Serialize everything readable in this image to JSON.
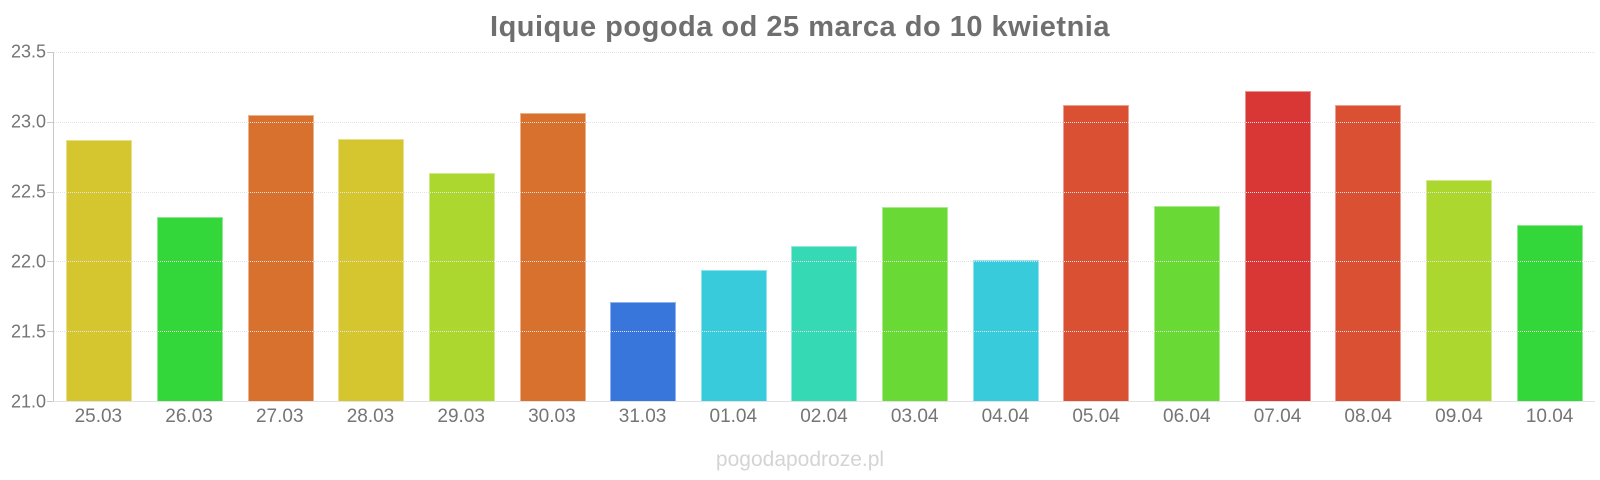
{
  "page": {
    "watermark": "pogodapodroze.pl",
    "background_color": "#ffffff",
    "title_color": "#6f6f6f",
    "axis_label_color": "#757575"
  },
  "chart_data": {
    "type": "bar",
    "title": "Iquique pogoda od 25 marca do 10 kwietnia",
    "xlabel": "",
    "ylabel": "",
    "ylim": [
      21.0,
      23.5
    ],
    "yticks": [
      "23.5",
      "23.0",
      "22.5",
      "22.0",
      "21.5",
      "21.0"
    ],
    "grid": true,
    "legend": "none",
    "categories": [
      "25.03",
      "26.03",
      "27.03",
      "28.03",
      "29.03",
      "30.03",
      "31.03",
      "01.04",
      "02.04",
      "03.04",
      "04.04",
      "05.04",
      "06.04",
      "07.04",
      "08.04",
      "09.04",
      "10.04"
    ],
    "values": [
      22.87,
      22.32,
      23.05,
      22.88,
      22.63,
      23.06,
      21.71,
      21.94,
      22.11,
      22.39,
      22.01,
      23.12,
      22.4,
      23.22,
      23.12,
      22.58,
      22.26
    ],
    "bar_colors": [
      "#d5c52f",
      "#34d73a",
      "#d8712e",
      "#d5c52f",
      "#abd72f",
      "#d8712e",
      "#3876db",
      "#38cbdc",
      "#35d9b3",
      "#68d935",
      "#38cbdc",
      "#da5033",
      "#68d935",
      "#d93636",
      "#da5033",
      "#abd72f",
      "#34d73a"
    ]
  }
}
